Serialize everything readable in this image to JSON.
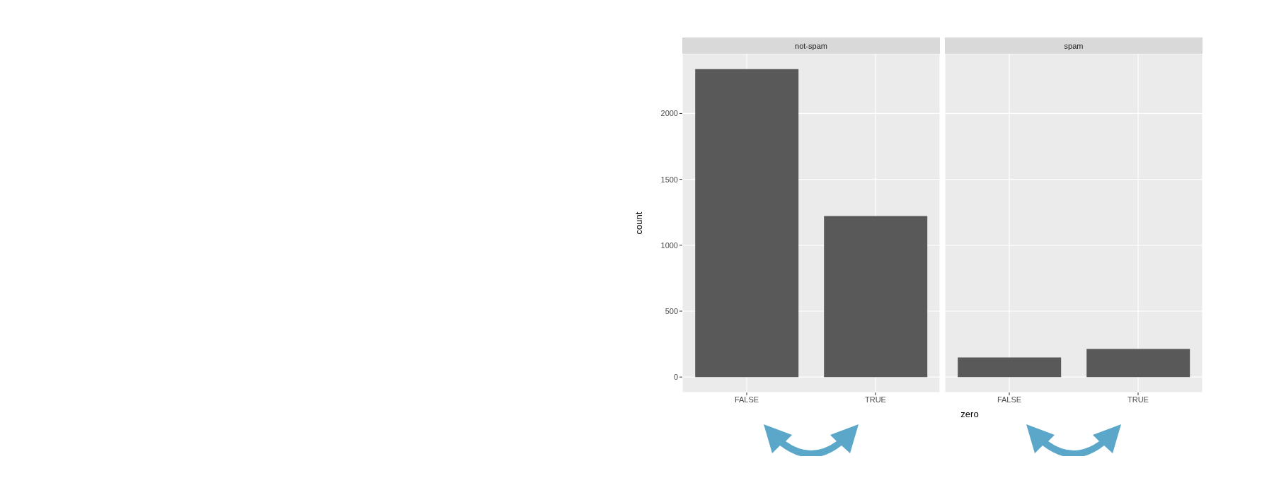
{
  "chart_data": [
    {
      "type": "bar",
      "title": "not-spam",
      "xlabel": "zero",
      "ylabel": "count",
      "categories": [
        "FALSE",
        "TRUE"
      ],
      "values": [
        2336,
        1221
      ],
      "color": "#595959",
      "ylim": [
        -117,
        2453
      ],
      "yticks": [
        0,
        500,
        1000,
        1500,
        2000
      ],
      "grid": true
    },
    {
      "type": "bar",
      "title": "spam",
      "categories": [
        "FALSE",
        "TRUE"
      ],
      "values": [
        148,
        213
      ],
      "color": "#595959",
      "ylim": [
        -117,
        2453
      ],
      "yticks": [
        0,
        500,
        1000,
        1500,
        2000
      ],
      "grid": true,
      "tick_labels": "x"
    }
  ]
}
